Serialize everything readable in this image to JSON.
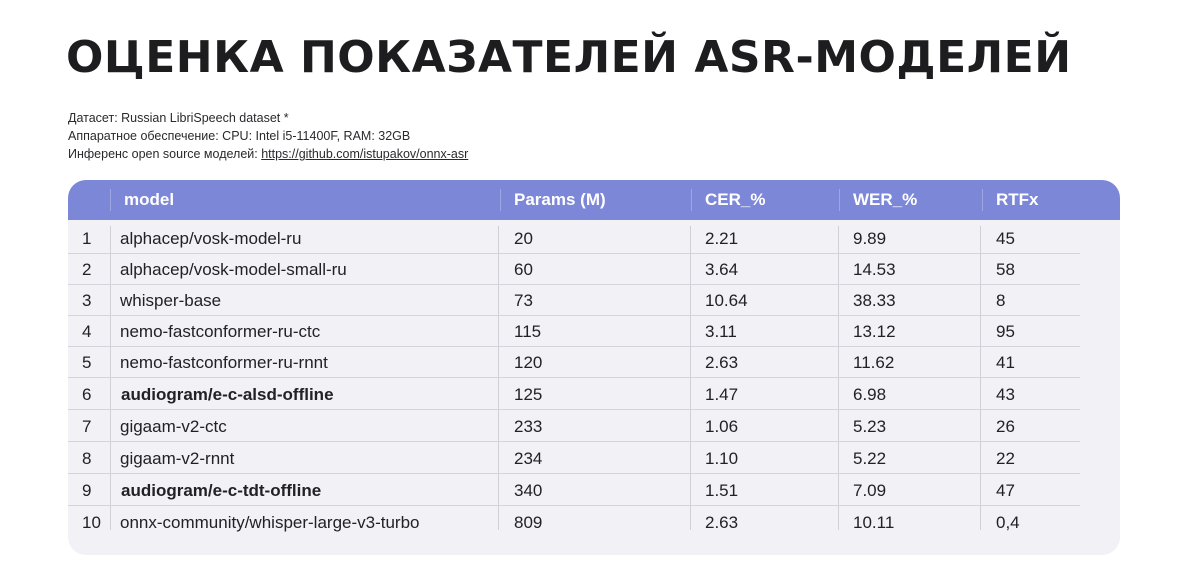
{
  "title": "ОЦЕНКА ПОКАЗАТЕЛЕЙ ASR-МОДЕЛЕЙ",
  "meta": {
    "dataset": "Датасет: Russian LibriSpeech dataset *",
    "hardware": "Аппаратное обеспечение: CPU: Intel i5-11400F, RAM: 32GB",
    "inference_prefix": "Инференс open source моделей: ",
    "inference_link": "https://github.com/istupakov/onnx-asr"
  },
  "colors": {
    "header_bg": "#7d87d8",
    "table_bg": "#f1f1f6",
    "title": "#1d1d20"
  },
  "table": {
    "headers": [
      "",
      "model",
      "Params (M)",
      "CER_%",
      "WER_%",
      "RTFx"
    ],
    "rows": [
      {
        "n": "1",
        "model": "alphacep/vosk-model-ru",
        "params": "20",
        "cer": "2.21",
        "wer": "9.89",
        "rtfx": "45",
        "bold": false
      },
      {
        "n": "2",
        "model": "alphacep/vosk-model-small-ru",
        "params": "60",
        "cer": "3.64",
        "wer": "14.53",
        "rtfx": "58",
        "bold": false
      },
      {
        "n": "3",
        "model": "whisper-base",
        "params": "73",
        "cer": "10.64",
        "wer": "38.33",
        "rtfx": "8",
        "bold": false
      },
      {
        "n": "4",
        "model": "nemo-fastconformer-ru-ctc",
        "params": "115",
        "cer": "3.11",
        "wer": "13.12",
        "rtfx": "95",
        "bold": false
      },
      {
        "n": "5",
        "model": "nemo-fastconformer-ru-rnnt",
        "params": "120",
        "cer": "2.63",
        "wer": "11.62",
        "rtfx": "41",
        "bold": false
      },
      {
        "n": "6",
        "model": "audiogram/e-c-alsd-offline",
        "params": "125",
        "cer": "1.47",
        "wer": "6.98",
        "rtfx": "43",
        "bold": true
      },
      {
        "n": "7",
        "model": "gigaam-v2-ctc",
        "params": "233",
        "cer": "1.06",
        "wer": "5.23",
        "rtfx": "26",
        "bold": false
      },
      {
        "n": "8",
        "model": "gigaam-v2-rnnt",
        "params": "234",
        "cer": "1.10",
        "wer": "5.22",
        "rtfx": "22",
        "bold": false
      },
      {
        "n": "9",
        "model": "audiogram/e-c-tdt-offline",
        "params": "340",
        "cer": "1.51",
        "wer": "7.09",
        "rtfx": "47",
        "bold": true
      },
      {
        "n": "10",
        "model": "onnx-community/whisper-large-v3-turbo",
        "params": "809",
        "cer": "2.63",
        "wer": "10.11",
        "rtfx": "0,4",
        "bold": false
      }
    ]
  }
}
